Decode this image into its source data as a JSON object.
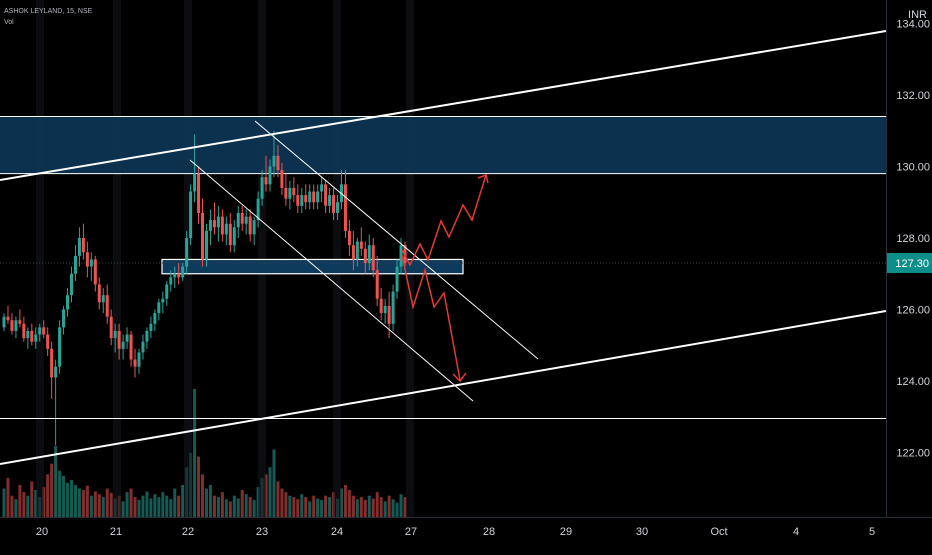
{
  "header": {
    "symbol_line": "ASHOK LEYLAND, 15, NSE",
    "volume_label": "Vol",
    "currency": "INR"
  },
  "price_tag": {
    "value": "127.30",
    "bg": "#0c8f8a"
  },
  "colors": {
    "background": "#000000",
    "up": "#26a69a",
    "down": "#ef5350",
    "zone_fill": "#0e3a5c",
    "lines": "#ffffff",
    "arrows": "#e53935"
  },
  "chart_data": {
    "type": "candlestick",
    "title": "ASHOK LEYLAND, 15, NSE",
    "x_tick_labels": [
      "20",
      "21",
      "22",
      "23",
      "24",
      "27",
      "28",
      "29",
      "30",
      "Oct",
      "4",
      "5"
    ],
    "y_tick_labels": [
      "122.00",
      "124.00",
      "126.00",
      "128.00",
      "130.00",
      "132.00",
      "134.00"
    ],
    "ylim": [
      120.5,
      134.6
    ],
    "current_price": 127.3,
    "candles": [
      [
        125.5,
        125.9,
        125.4,
        125.8
      ],
      [
        125.8,
        126.1,
        125.6,
        125.7
      ],
      [
        125.7,
        125.9,
        125.3,
        125.4
      ],
      [
        125.4,
        125.8,
        125.2,
        125.7
      ],
      [
        125.7,
        126.0,
        125.5,
        125.6
      ],
      [
        125.6,
        125.8,
        125.1,
        125.2
      ],
      [
        125.2,
        125.5,
        124.9,
        125.4
      ],
      [
        125.4,
        125.6,
        125.0,
        125.1
      ],
      [
        125.1,
        125.5,
        124.9,
        125.3
      ],
      [
        125.3,
        125.6,
        125.1,
        125.5
      ],
      [
        125.5,
        125.7,
        125.2,
        125.3
      ],
      [
        125.3,
        125.5,
        124.7,
        124.9
      ],
      [
        124.9,
        125.1,
        123.5,
        124.1
      ],
      [
        124.1,
        124.6,
        122.2,
        124.4
      ],
      [
        124.4,
        125.7,
        124.2,
        125.5
      ],
      [
        125.5,
        126.1,
        125.3,
        126.0
      ],
      [
        126.0,
        126.6,
        125.8,
        126.4
      ],
      [
        126.4,
        127.2,
        126.2,
        127.0
      ],
      [
        127.0,
        127.8,
        126.8,
        127.5
      ],
      [
        127.5,
        128.3,
        127.2,
        128.0
      ],
      [
        128.0,
        128.4,
        127.4,
        127.6
      ],
      [
        127.6,
        127.9,
        126.9,
        127.2
      ],
      [
        127.2,
        127.6,
        126.8,
        127.4
      ],
      [
        127.4,
        127.5,
        126.5,
        126.7
      ],
      [
        126.7,
        126.9,
        126.0,
        126.2
      ],
      [
        126.2,
        126.6,
        125.9,
        126.4
      ],
      [
        126.4,
        126.7,
        125.6,
        125.8
      ],
      [
        125.8,
        126.0,
        125.0,
        125.2
      ],
      [
        125.2,
        125.6,
        124.8,
        125.4
      ],
      [
        125.4,
        125.6,
        124.6,
        124.9
      ],
      [
        124.9,
        125.3,
        124.6,
        125.1
      ],
      [
        125.1,
        125.5,
        124.9,
        125.3
      ],
      [
        125.3,
        125.4,
        124.4,
        124.6
      ],
      [
        124.6,
        124.9,
        124.1,
        124.4
      ],
      [
        124.4,
        124.9,
        124.2,
        124.8
      ],
      [
        124.8,
        125.3,
        124.6,
        125.1
      ],
      [
        125.1,
        125.5,
        124.9,
        125.4
      ],
      [
        125.4,
        125.8,
        125.2,
        125.6
      ],
      [
        125.6,
        126.0,
        125.4,
        125.9
      ],
      [
        125.9,
        126.3,
        125.7,
        126.2
      ],
      [
        126.2,
        126.5,
        125.9,
        126.3
      ],
      [
        126.3,
        126.8,
        126.1,
        126.7
      ],
      [
        126.7,
        127.1,
        126.5,
        126.9
      ],
      [
        126.9,
        127.2,
        126.6,
        127.0
      ],
      [
        127.0,
        127.3,
        126.7,
        126.9
      ],
      [
        126.9,
        127.3,
        126.8,
        127.2
      ],
      [
        127.2,
        128.2,
        127.0,
        128.0
      ],
      [
        128.0,
        129.5,
        127.8,
        129.3
      ],
      [
        129.3,
        130.9,
        129.0,
        129.8
      ],
      [
        129.8,
        130.0,
        128.4,
        128.7
      ],
      [
        128.7,
        129.1,
        127.2,
        127.4
      ],
      [
        127.4,
        128.4,
        127.2,
        128.2
      ],
      [
        128.2,
        128.8,
        127.8,
        128.5
      ],
      [
        128.5,
        129.0,
        128.1,
        128.3
      ],
      [
        128.3,
        128.9,
        127.9,
        128.6
      ],
      [
        128.6,
        128.8,
        127.9,
        128.1
      ],
      [
        128.1,
        128.6,
        127.8,
        128.4
      ],
      [
        128.4,
        128.7,
        127.6,
        127.8
      ],
      [
        127.8,
        128.5,
        127.6,
        128.3
      ],
      [
        128.3,
        128.9,
        128.0,
        128.7
      ],
      [
        128.7,
        128.9,
        128.2,
        128.4
      ],
      [
        128.4,
        128.8,
        128.1,
        128.6
      ],
      [
        128.6,
        128.8,
        127.9,
        128.1
      ],
      [
        128.1,
        128.6,
        127.8,
        128.5
      ],
      [
        128.5,
        129.3,
        128.3,
        129.1
      ],
      [
        129.1,
        129.9,
        128.9,
        129.7
      ],
      [
        129.7,
        130.3,
        129.3,
        129.5
      ],
      [
        129.5,
        130.2,
        129.3,
        130.0
      ],
      [
        130.0,
        131.0,
        129.7,
        130.3
      ],
      [
        130.3,
        130.6,
        129.7,
        129.9
      ],
      [
        129.9,
        130.1,
        129.2,
        129.4
      ],
      [
        129.4,
        129.8,
        128.9,
        129.1
      ],
      [
        129.1,
        129.6,
        128.8,
        129.4
      ],
      [
        129.4,
        129.7,
        129.0,
        129.2
      ],
      [
        129.2,
        129.5,
        128.7,
        128.9
      ],
      [
        128.9,
        129.4,
        128.7,
        129.2
      ],
      [
        129.2,
        129.5,
        128.8,
        129.0
      ],
      [
        129.0,
        129.5,
        128.8,
        129.3
      ],
      [
        129.3,
        129.5,
        128.8,
        129.0
      ],
      [
        129.0,
        129.5,
        128.8,
        129.3
      ],
      [
        129.3,
        129.7,
        129.0,
        129.5
      ],
      [
        129.5,
        129.6,
        128.7,
        128.9
      ],
      [
        128.9,
        129.4,
        128.7,
        129.2
      ],
      [
        129.2,
        129.4,
        128.5,
        128.7
      ],
      [
        128.7,
        129.2,
        128.5,
        129.0
      ],
      [
        129.0,
        129.9,
        128.8,
        129.5
      ],
      [
        129.5,
        129.9,
        128.0,
        128.2
      ],
      [
        128.2,
        128.5,
        127.5,
        127.8
      ],
      [
        127.8,
        128.2,
        127.1,
        127.4
      ],
      [
        127.4,
        128.0,
        127.2,
        127.9
      ],
      [
        127.9,
        128.3,
        127.5,
        127.7
      ],
      [
        127.7,
        127.9,
        127.0,
        127.3
      ],
      [
        127.3,
        128.1,
        127.1,
        127.8
      ],
      [
        127.8,
        128.0,
        126.9,
        127.1
      ],
      [
        127.1,
        127.5,
        126.1,
        126.3
      ],
      [
        126.3,
        126.6,
        125.7,
        125.9
      ],
      [
        125.9,
        126.3,
        125.6,
        126.1
      ],
      [
        126.1,
        126.5,
        125.2,
        125.6
      ],
      [
        125.6,
        126.7,
        125.4,
        126.5
      ],
      [
        126.5,
        127.4,
        126.3,
        127.2
      ],
      [
        127.2,
        128.0,
        127.0,
        127.8
      ],
      [
        127.8,
        127.9,
        127.1,
        127.3
      ]
    ],
    "volumes": [
      40,
      55,
      30,
      25,
      45,
      35,
      30,
      50,
      38,
      28,
      42,
      60,
      75,
      100,
      65,
      58,
      48,
      52,
      45,
      40,
      38,
      44,
      30,
      36,
      32,
      28,
      40,
      34,
      26,
      30,
      22,
      35,
      40,
      28,
      24,
      30,
      36,
      26,
      32,
      28,
      35,
      30,
      25,
      40,
      30,
      45,
      70,
      90,
      180,
      85,
      60,
      40,
      45,
      30,
      28,
      35,
      25,
      22,
      30,
      26,
      38,
      32,
      28,
      24,
      42,
      55,
      60,
      70,
      95,
      50,
      40,
      35,
      30,
      28,
      25,
      32,
      28,
      22,
      30,
      26,
      24,
      30,
      28,
      35,
      26,
      40,
      45,
      38,
      30,
      25,
      28,
      24,
      30,
      26,
      35,
      28,
      22,
      30,
      25,
      20,
      32,
      28
    ],
    "drawings": {
      "supply_zone": [
        129.8,
        131.4
      ],
      "small_zone": [
        127.0,
        127.4
      ],
      "horizontal_level": 122.95,
      "upper_trendline": "rising line from left edge to upper right",
      "lower_trendline": "rising line from left edge to lower right",
      "descending_channel": "two parallel falling lines from the Sep 22–23 highs",
      "scenario_arrows": [
        "up toward 130.00",
        "down toward 124.00"
      ]
    }
  }
}
